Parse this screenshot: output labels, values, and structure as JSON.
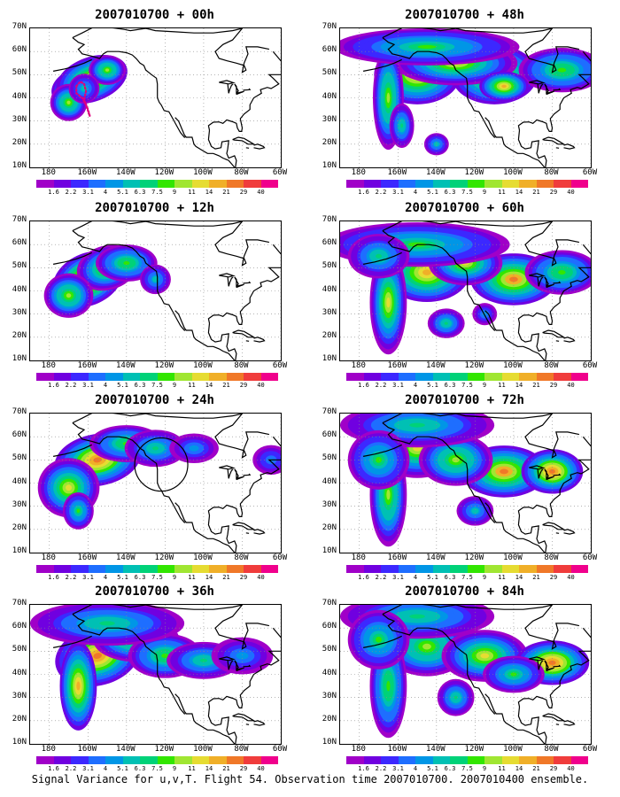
{
  "panels": [
    {
      "title": "2007010700 + 00h",
      "flight_track": true,
      "circle": false,
      "blobs": [
        [
          -165,
          45,
          9,
          5,
          0.9,
          -20
        ],
        [
          -158,
          48,
          12,
          6,
          0.8,
          -20
        ],
        [
          -150,
          52,
          6,
          4,
          0.6,
          0
        ],
        [
          -170,
          38,
          6,
          5,
          0.6,
          0
        ],
        [
          -162,
          44,
          5,
          4,
          0.4,
          -20
        ]
      ]
    },
    {
      "title": "2007010700 + 48h",
      "flight_track": false,
      "circle": false,
      "blobs": [
        [
          -150,
          50,
          14,
          8,
          0.75,
          0
        ],
        [
          -110,
          50,
          14,
          8,
          0.75,
          0
        ],
        [
          -130,
          55,
          20,
          6,
          0.65,
          0
        ],
        [
          -165,
          40,
          5,
          14,
          0.6,
          0
        ],
        [
          -145,
          62,
          30,
          5,
          0.5,
          0
        ],
        [
          -75,
          52,
          14,
          6,
          0.55,
          0
        ],
        [
          -158,
          28,
          4,
          6,
          0.45,
          0
        ],
        [
          -140,
          20,
          4,
          3,
          0.4,
          0
        ],
        [
          -105,
          45,
          8,
          4,
          0.75,
          0
        ]
      ]
    },
    {
      "title": "2007010700 + 12h",
      "flight_track": false,
      "circle": false,
      "blobs": [
        [
          -160,
          45,
          12,
          7,
          0.9,
          -25
        ],
        [
          -150,
          50,
          10,
          6,
          0.7,
          -15
        ],
        [
          -170,
          38,
          8,
          6,
          0.6,
          0
        ],
        [
          -140,
          52,
          10,
          5,
          0.55,
          0
        ],
        [
          -125,
          45,
          5,
          4,
          0.4,
          0
        ]
      ]
    },
    {
      "title": "2007010700 + 60h",
      "flight_track": false,
      "circle": false,
      "blobs": [
        [
          -145,
          48,
          14,
          8,
          0.75,
          0
        ],
        [
          -100,
          45,
          14,
          7,
          0.8,
          0
        ],
        [
          -125,
          52,
          12,
          6,
          0.65,
          0
        ],
        [
          -165,
          35,
          6,
          14,
          0.65,
          0
        ],
        [
          -150,
          60,
          30,
          6,
          0.5,
          0
        ],
        [
          -75,
          48,
          12,
          6,
          0.55,
          0
        ],
        [
          -135,
          26,
          6,
          4,
          0.45,
          0
        ],
        [
          -115,
          30,
          4,
          3,
          0.35,
          0
        ],
        [
          -170,
          55,
          10,
          6,
          0.45,
          0
        ]
      ]
    },
    {
      "title": "2007010700 + 24h",
      "flight_track": false,
      "circle": true,
      "blobs": [
        [
          -155,
          50,
          14,
          7,
          0.85,
          -10
        ],
        [
          -170,
          38,
          10,
          8,
          0.65,
          0
        ],
        [
          -165,
          28,
          5,
          5,
          0.5,
          0
        ],
        [
          -140,
          57,
          12,
          5,
          0.55,
          0
        ],
        [
          -125,
          55,
          10,
          5,
          0.45,
          0
        ],
        [
          -105,
          55,
          8,
          4,
          0.35,
          0
        ],
        [
          -65,
          50,
          6,
          4,
          0.3,
          0
        ]
      ]
    },
    {
      "title": "2007010700 + 72h",
      "flight_track": false,
      "circle": false,
      "blobs": [
        [
          -150,
          55,
          14,
          8,
          0.65,
          0
        ],
        [
          -105,
          45,
          14,
          7,
          0.8,
          0
        ],
        [
          -80,
          45,
          10,
          6,
          0.85,
          0
        ],
        [
          -130,
          50,
          12,
          7,
          0.6,
          0
        ],
        [
          -165,
          35,
          6,
          14,
          0.6,
          0
        ],
        [
          -150,
          65,
          25,
          6,
          0.45,
          0
        ],
        [
          -120,
          28,
          6,
          4,
          0.4,
          0
        ],
        [
          -170,
          50,
          10,
          8,
          0.5,
          0
        ]
      ]
    },
    {
      "title": "2007010700 + 36h",
      "flight_track": false,
      "circle": false,
      "blobs": [
        [
          -155,
          48,
          14,
          8,
          0.85,
          -15
        ],
        [
          -165,
          35,
          6,
          12,
          0.75,
          0
        ],
        [
          -135,
          55,
          14,
          6,
          0.6,
          0
        ],
        [
          -120,
          48,
          12,
          6,
          0.55,
          0
        ],
        [
          -100,
          46,
          12,
          5,
          0.45,
          0
        ],
        [
          -150,
          62,
          25,
          6,
          0.45,
          0
        ],
        [
          -80,
          48,
          10,
          5,
          0.35,
          0
        ]
      ]
    },
    {
      "title": "2007010700 + 84h",
      "flight_track": false,
      "circle": false,
      "blobs": [
        [
          -145,
          52,
          14,
          8,
          0.6,
          0
        ],
        [
          -115,
          48,
          14,
          7,
          0.65,
          0
        ],
        [
          -80,
          45,
          12,
          6,
          0.85,
          0
        ],
        [
          -165,
          35,
          6,
          14,
          0.55,
          0
        ],
        [
          -150,
          65,
          25,
          6,
          0.45,
          0
        ],
        [
          -130,
          30,
          6,
          5,
          0.45,
          0
        ],
        [
          -170,
          55,
          10,
          8,
          0.5,
          0
        ],
        [
          -100,
          40,
          10,
          5,
          0.5,
          0
        ]
      ]
    }
  ],
  "y_ticks": [
    "70N",
    "60N",
    "50N",
    "40N",
    "30N",
    "20N",
    "10N"
  ],
  "x_ticks": [
    "180",
    "160W",
    "140W",
    "120W",
    "100W",
    "80W",
    "60W"
  ],
  "colorbar": {
    "labels": [
      "1.6",
      "2.2",
      "3.1",
      "4",
      "5.1",
      "6.3",
      "7.5",
      "9",
      "11",
      "14",
      "21",
      "29",
      "40"
    ],
    "colors": [
      "#a000c8",
      "#7000e0",
      "#3c28ff",
      "#1e6eff",
      "#0096e6",
      "#00c0b4",
      "#00d278",
      "#32e600",
      "#a0e632",
      "#e6dc32",
      "#f0af28",
      "#f07828",
      "#f03c3c",
      "#f0008c"
    ]
  },
  "caption": "Signal Variance for u,v,T. Flight 54. Observation time 2007010700. 2007010400 ensemble."
}
